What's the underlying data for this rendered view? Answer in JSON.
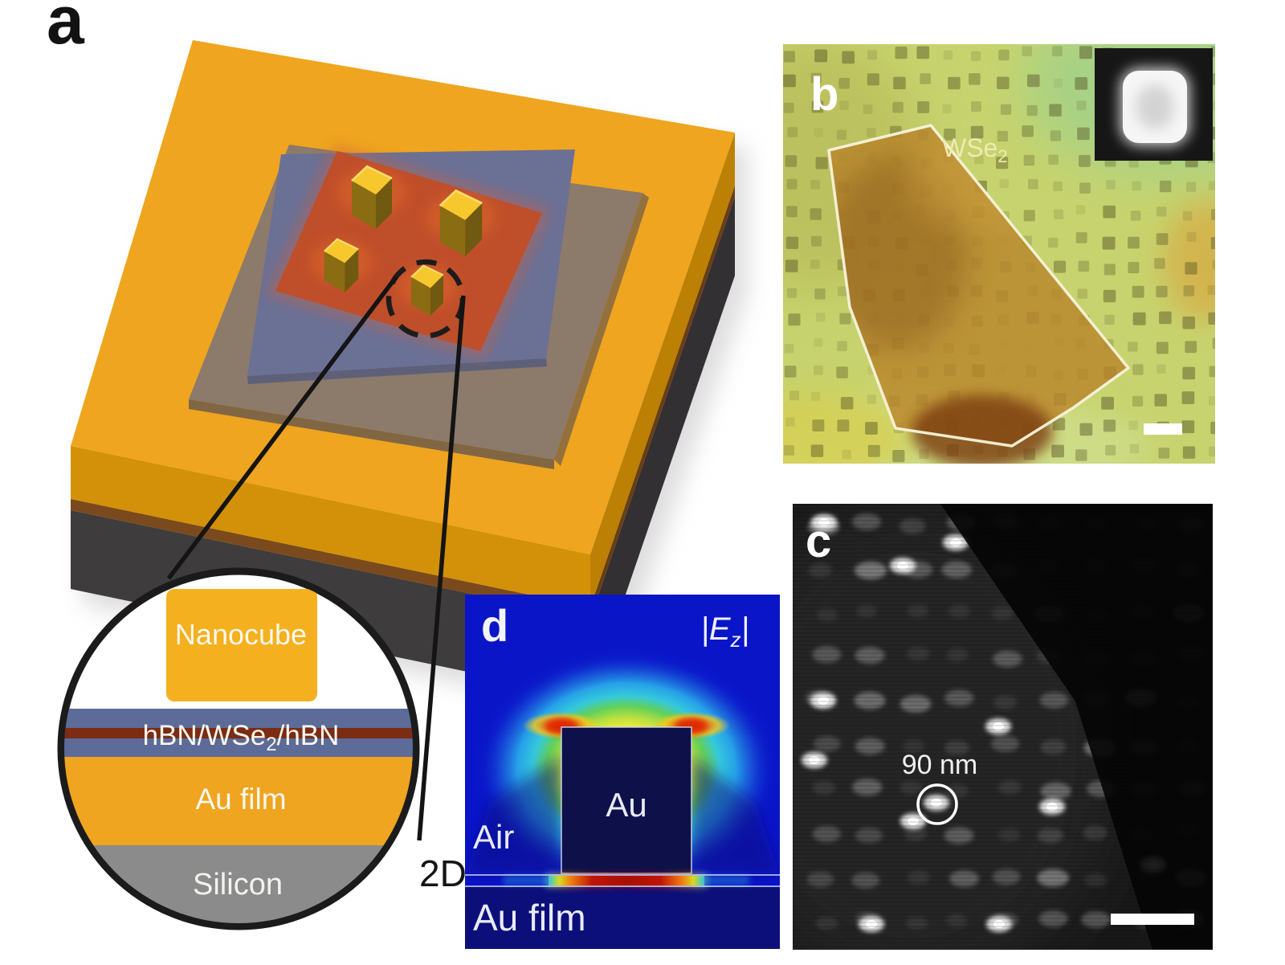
{
  "figure": {
    "panel_a": {
      "label": "a",
      "callout": {
        "nanocube_label": "Nanocube",
        "stack_label_pre": "hBN/WSe",
        "stack_label_sub": "2",
        "stack_label_post": "/hBN",
        "au_film_label": "Au film",
        "silicon_label": "Silicon"
      }
    },
    "panel_b": {
      "label": "b",
      "flake_label_pre": "WSe",
      "flake_label_sub": "2"
    },
    "panel_c": {
      "label": "c",
      "annotation": "90 nm"
    },
    "panel_d": {
      "label": "d",
      "field_label_pre": "|E",
      "field_label_sub": "z",
      "field_label_post": "|",
      "cube_label": "Au",
      "air_label": "Air",
      "film_label": "Au film",
      "layer2d_label": "2D"
    },
    "colors": {
      "gold": "#efa51f",
      "gold_side": "#d29108",
      "red_slab": "#bf4e2a",
      "blue_slab": "#6b7095",
      "grey_slab": "#8c7a6a",
      "silicon_grey": "#8b8b8b",
      "maroon_wse2": "#7b2c13",
      "field_blue": "#0a15c8",
      "hot_red": "#b81205"
    }
  }
}
